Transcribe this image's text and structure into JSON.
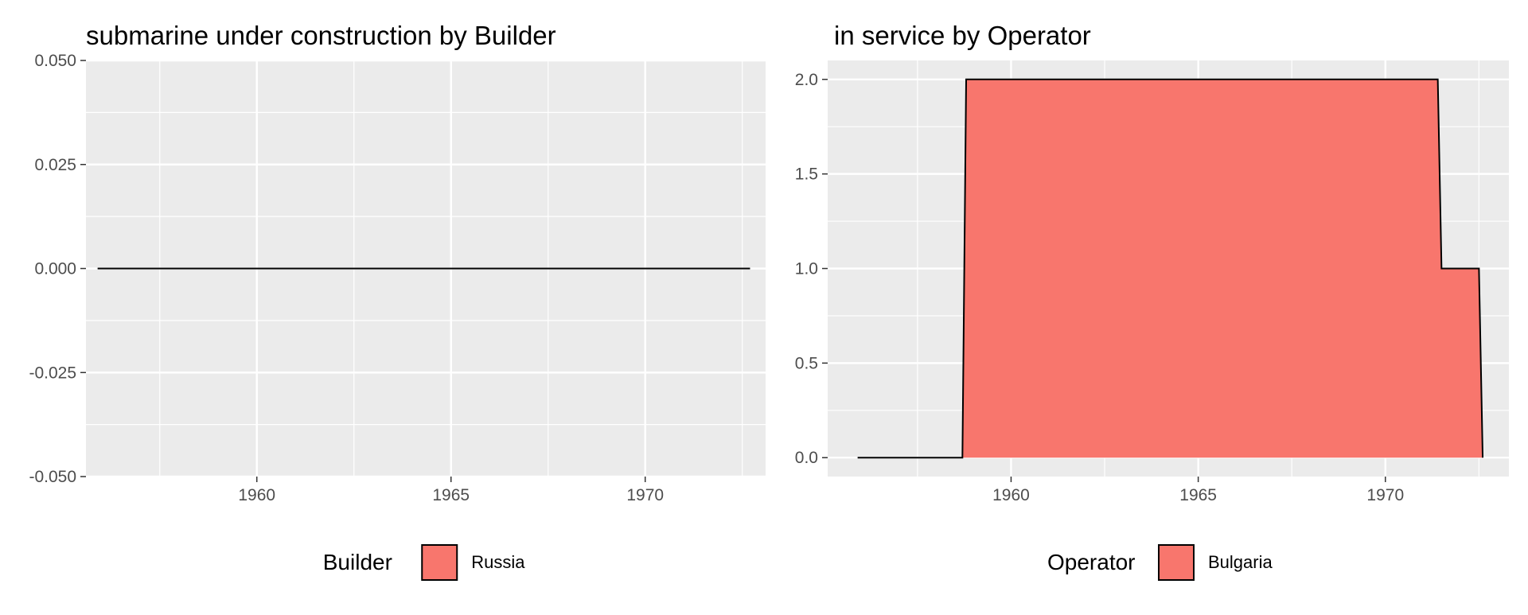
{
  "chart_data": [
    {
      "type": "area",
      "title": "submarine under construction by Builder",
      "xlabel": "",
      "ylabel": "",
      "xlim": [
        1955.6,
        1973.1
      ],
      "ylim": [
        -0.05,
        0.05
      ],
      "x_ticks": [
        1960,
        1965,
        1970
      ],
      "x_tick_labels": [
        "1960",
        "1965",
        "1970"
      ],
      "y_ticks": [
        -0.05,
        -0.025,
        0,
        0.025,
        0.05
      ],
      "y_tick_labels": [
        "-0.050",
        "-0.025",
        "0.000",
        "0.025",
        "0.050"
      ],
      "grid": true,
      "legend_position": "bottom",
      "legend_title": "Builder",
      "series": [
        {
          "name": "Russia",
          "color": "#F8766D",
          "x": [
            1955.9,
            1972.7
          ],
          "y": [
            0,
            0
          ]
        }
      ]
    },
    {
      "type": "area",
      "title": "in service by Operator",
      "xlabel": "",
      "ylabel": "",
      "xlim": [
        1955.1,
        1973.3
      ],
      "ylim": [
        -0.1,
        2.1
      ],
      "x_ticks": [
        1960,
        1965,
        1970
      ],
      "x_tick_labels": [
        "1960",
        "1965",
        "1970"
      ],
      "y_ticks": [
        0,
        0.5,
        1,
        1.5,
        2
      ],
      "y_tick_labels": [
        "0.0",
        "0.5",
        "1.0",
        "1.5",
        "2.0"
      ],
      "grid": true,
      "legend_position": "bottom",
      "legend_title": "Operator",
      "series": [
        {
          "name": "Bulgaria",
          "color": "#F8766D",
          "x": [
            1955.9,
            1958.7,
            1958.8,
            1971.4,
            1971.5,
            1972.5,
            1972.6
          ],
          "y": [
            0,
            0,
            2,
            2,
            1,
            1,
            0
          ]
        }
      ]
    }
  ]
}
